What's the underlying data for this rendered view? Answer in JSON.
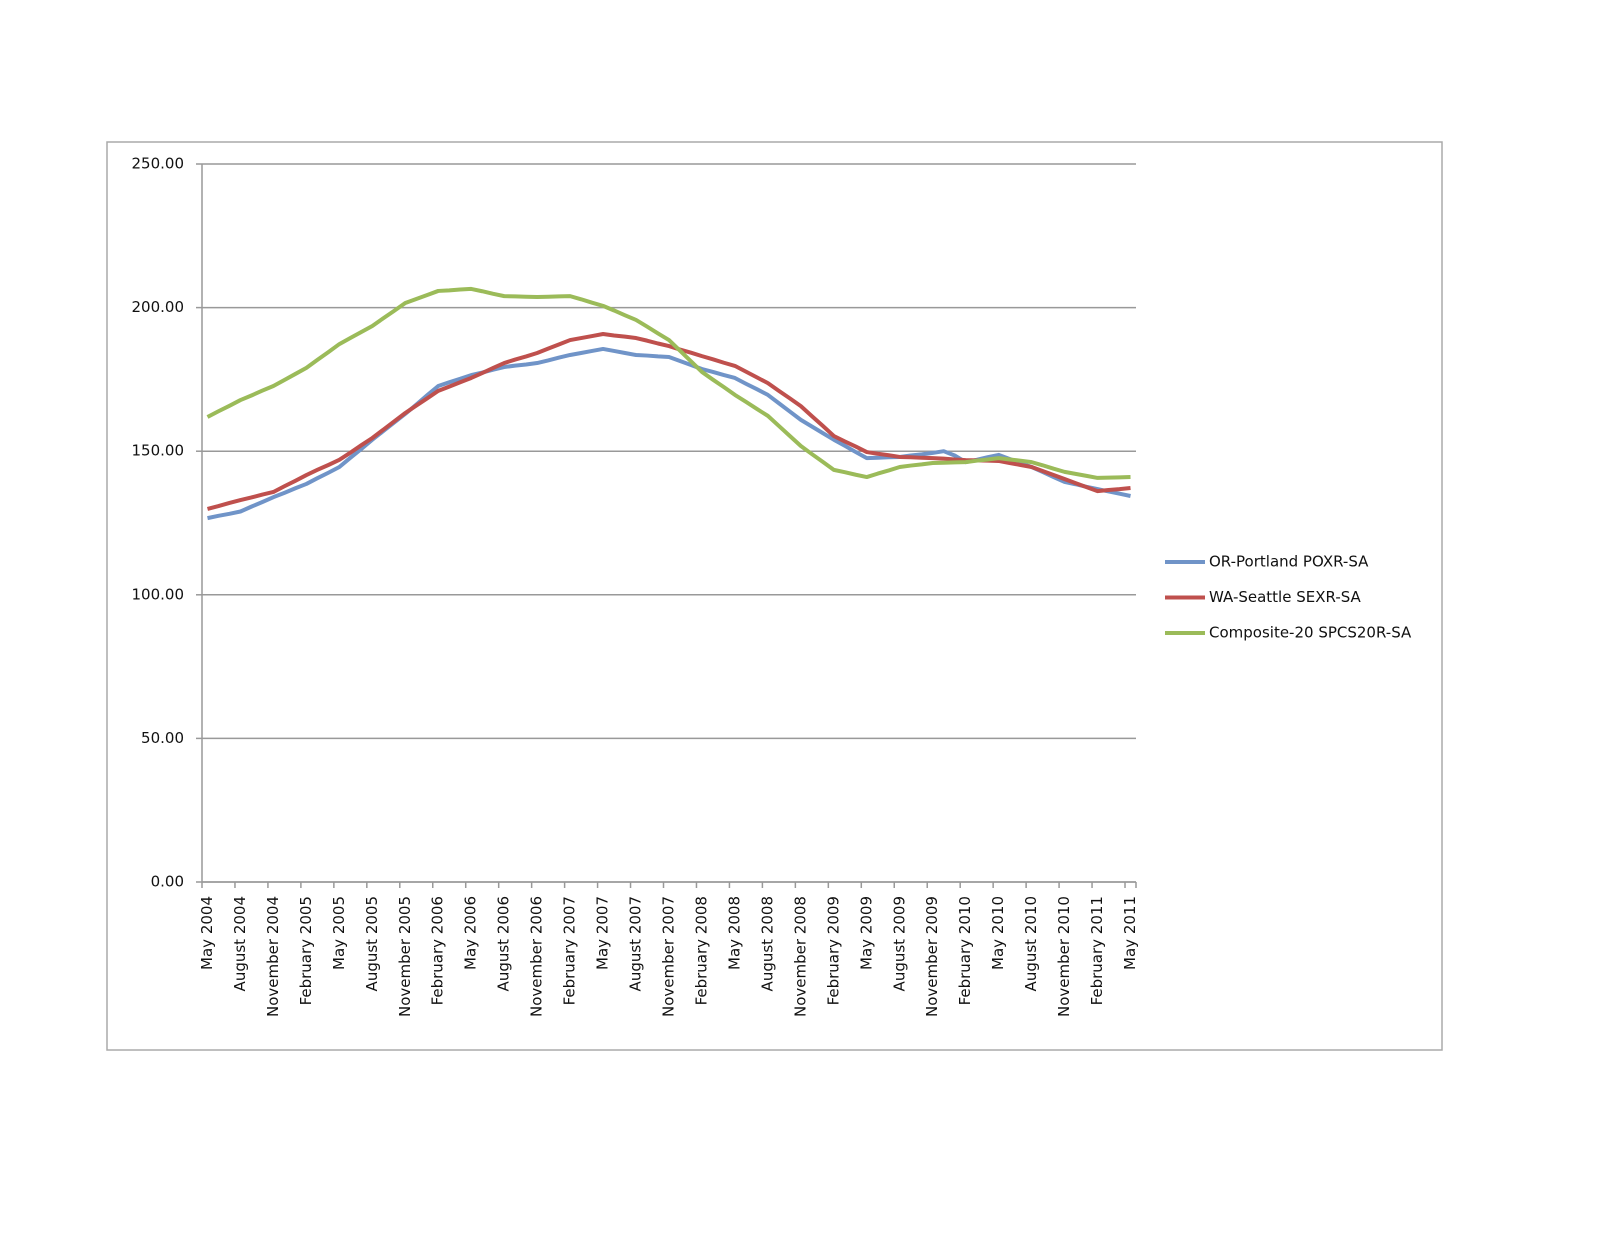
{
  "chart_data": {
    "type": "line",
    "categories": [
      "May 2004",
      null,
      null,
      "August 2004",
      null,
      null,
      "November 2004",
      null,
      null,
      "February 2005",
      null,
      null,
      "May 2005",
      null,
      null,
      "August 2005",
      null,
      null,
      "November 2005",
      null,
      null,
      "February 2006",
      null,
      null,
      "May 2006",
      null,
      null,
      "August 2006",
      null,
      null,
      "November 2006",
      null,
      null,
      "February 2007",
      null,
      null,
      "May 2007",
      null,
      null,
      "August 2007",
      null,
      null,
      "November 2007",
      null,
      null,
      "February 2008",
      null,
      null,
      "May 2008",
      null,
      null,
      "August 2008",
      null,
      null,
      "November 2008",
      null,
      null,
      "February 2009",
      null,
      null,
      "May 2009",
      null,
      null,
      "August 2009",
      null,
      null,
      "November 2009",
      null,
      null,
      "February 2010",
      null,
      null,
      "May 2010",
      null,
      null,
      "August 2010",
      null,
      null,
      "November 2010",
      null,
      null,
      "February 2011",
      null,
      null,
      "May 2011"
    ],
    "series": [
      {
        "name": "OR-Portland POXR-SA",
        "color": "#7094c8",
        "values": [
          126.7,
          127.5,
          128.2,
          129.0,
          130.7,
          132.3,
          134.0,
          135.5,
          137.1,
          138.6,
          140.6,
          142.5,
          144.5,
          147.7,
          150.8,
          154.0,
          157.0,
          160.0,
          163.0,
          166.2,
          169.5,
          172.7,
          174.0,
          175.2,
          176.5,
          177.4,
          178.4,
          179.3,
          179.8,
          180.2,
          180.7,
          181.6,
          182.6,
          183.5,
          184.2,
          184.9,
          185.6,
          184.9,
          184.2,
          183.5,
          183.3,
          183.0,
          182.8,
          181.4,
          180.0,
          178.6,
          177.6,
          176.5,
          175.5,
          173.5,
          171.6,
          169.6,
          166.7,
          163.8,
          160.9,
          158.6,
          156.3,
          154.0,
          151.9,
          149.7,
          147.6,
          147.7,
          147.9,
          148.0,
          148.5,
          148.9,
          149.4,
          150.0,
          148.5,
          146.2,
          147.0,
          147.9,
          148.7,
          147.3,
          145.9,
          144.5,
          142.8,
          141.0,
          139.3,
          138.5,
          137.6,
          136.8,
          136.0,
          135.2,
          134.4
        ]
      },
      {
        "name": "WA-Seattle SEXR-SA",
        "color": "#bf504d",
        "values": [
          129.9,
          130.9,
          132.0,
          133.0,
          133.9,
          134.9,
          135.8,
          137.8,
          139.7,
          141.7,
          143.5,
          145.2,
          147.0,
          149.5,
          152.1,
          154.6,
          157.5,
          160.4,
          163.3,
          165.9,
          168.4,
          171.0,
          172.5,
          174.0,
          175.5,
          177.2,
          179.0,
          180.7,
          181.9,
          183.0,
          184.2,
          185.7,
          187.2,
          188.7,
          189.4,
          190.1,
          190.8,
          190.3,
          189.9,
          189.4,
          188.5,
          187.5,
          186.6,
          185.4,
          184.3,
          183.1,
          182.0,
          180.8,
          179.7,
          177.7,
          175.7,
          173.7,
          171.0,
          168.4,
          165.7,
          162.2,
          158.8,
          155.3,
          153.4,
          151.6,
          149.7,
          149.1,
          148.6,
          148.0,
          147.9,
          147.7,
          147.6,
          147.4,
          147.1,
          146.9,
          146.8,
          146.7,
          146.6,
          145.9,
          145.2,
          144.5,
          143.1,
          141.7,
          140.3,
          138.9,
          137.5,
          136.1,
          136.5,
          136.8,
          137.2
        ]
      },
      {
        "name": "Composite-20 SPCS20R-SA",
        "color": "#9bbb59",
        "values": [
          161.9,
          163.9,
          165.8,
          167.8,
          169.4,
          171.1,
          172.7,
          174.8,
          176.9,
          179.0,
          181.8,
          184.5,
          187.3,
          189.4,
          191.5,
          193.6,
          196.3,
          198.9,
          201.6,
          203.0,
          204.4,
          205.8,
          206.0,
          206.3,
          206.5,
          205.7,
          204.8,
          204.0,
          203.9,
          203.8,
          203.7,
          203.8,
          203.9,
          204.0,
          202.9,
          201.7,
          200.6,
          199.0,
          197.3,
          195.7,
          193.4,
          191.0,
          188.7,
          185.0,
          181.3,
          177.6,
          174.9,
          172.3,
          169.6,
          167.2,
          164.7,
          162.3,
          158.8,
          155.3,
          151.8,
          149.0,
          146.3,
          143.5,
          142.7,
          141.8,
          141.0,
          142.2,
          143.3,
          144.5,
          145.0,
          145.4,
          145.9,
          146.0,
          146.1,
          146.2,
          146.7,
          147.1,
          147.6,
          147.1,
          146.7,
          146.2,
          145.1,
          143.9,
          142.8,
          142.1,
          141.4,
          140.7,
          140.8,
          140.9,
          141.0
        ]
      }
    ],
    "ylim": [
      0,
      250
    ],
    "yticks": [
      {
        "value": 0,
        "label": "0.00"
      },
      {
        "value": 50,
        "label": "50.00"
      },
      {
        "value": 100,
        "label": "100.00"
      },
      {
        "value": 150,
        "label": "150.00"
      },
      {
        "value": 200,
        "label": "200.00"
      },
      {
        "value": 250,
        "label": "250.00"
      }
    ],
    "grid": true,
    "legend": "right"
  }
}
